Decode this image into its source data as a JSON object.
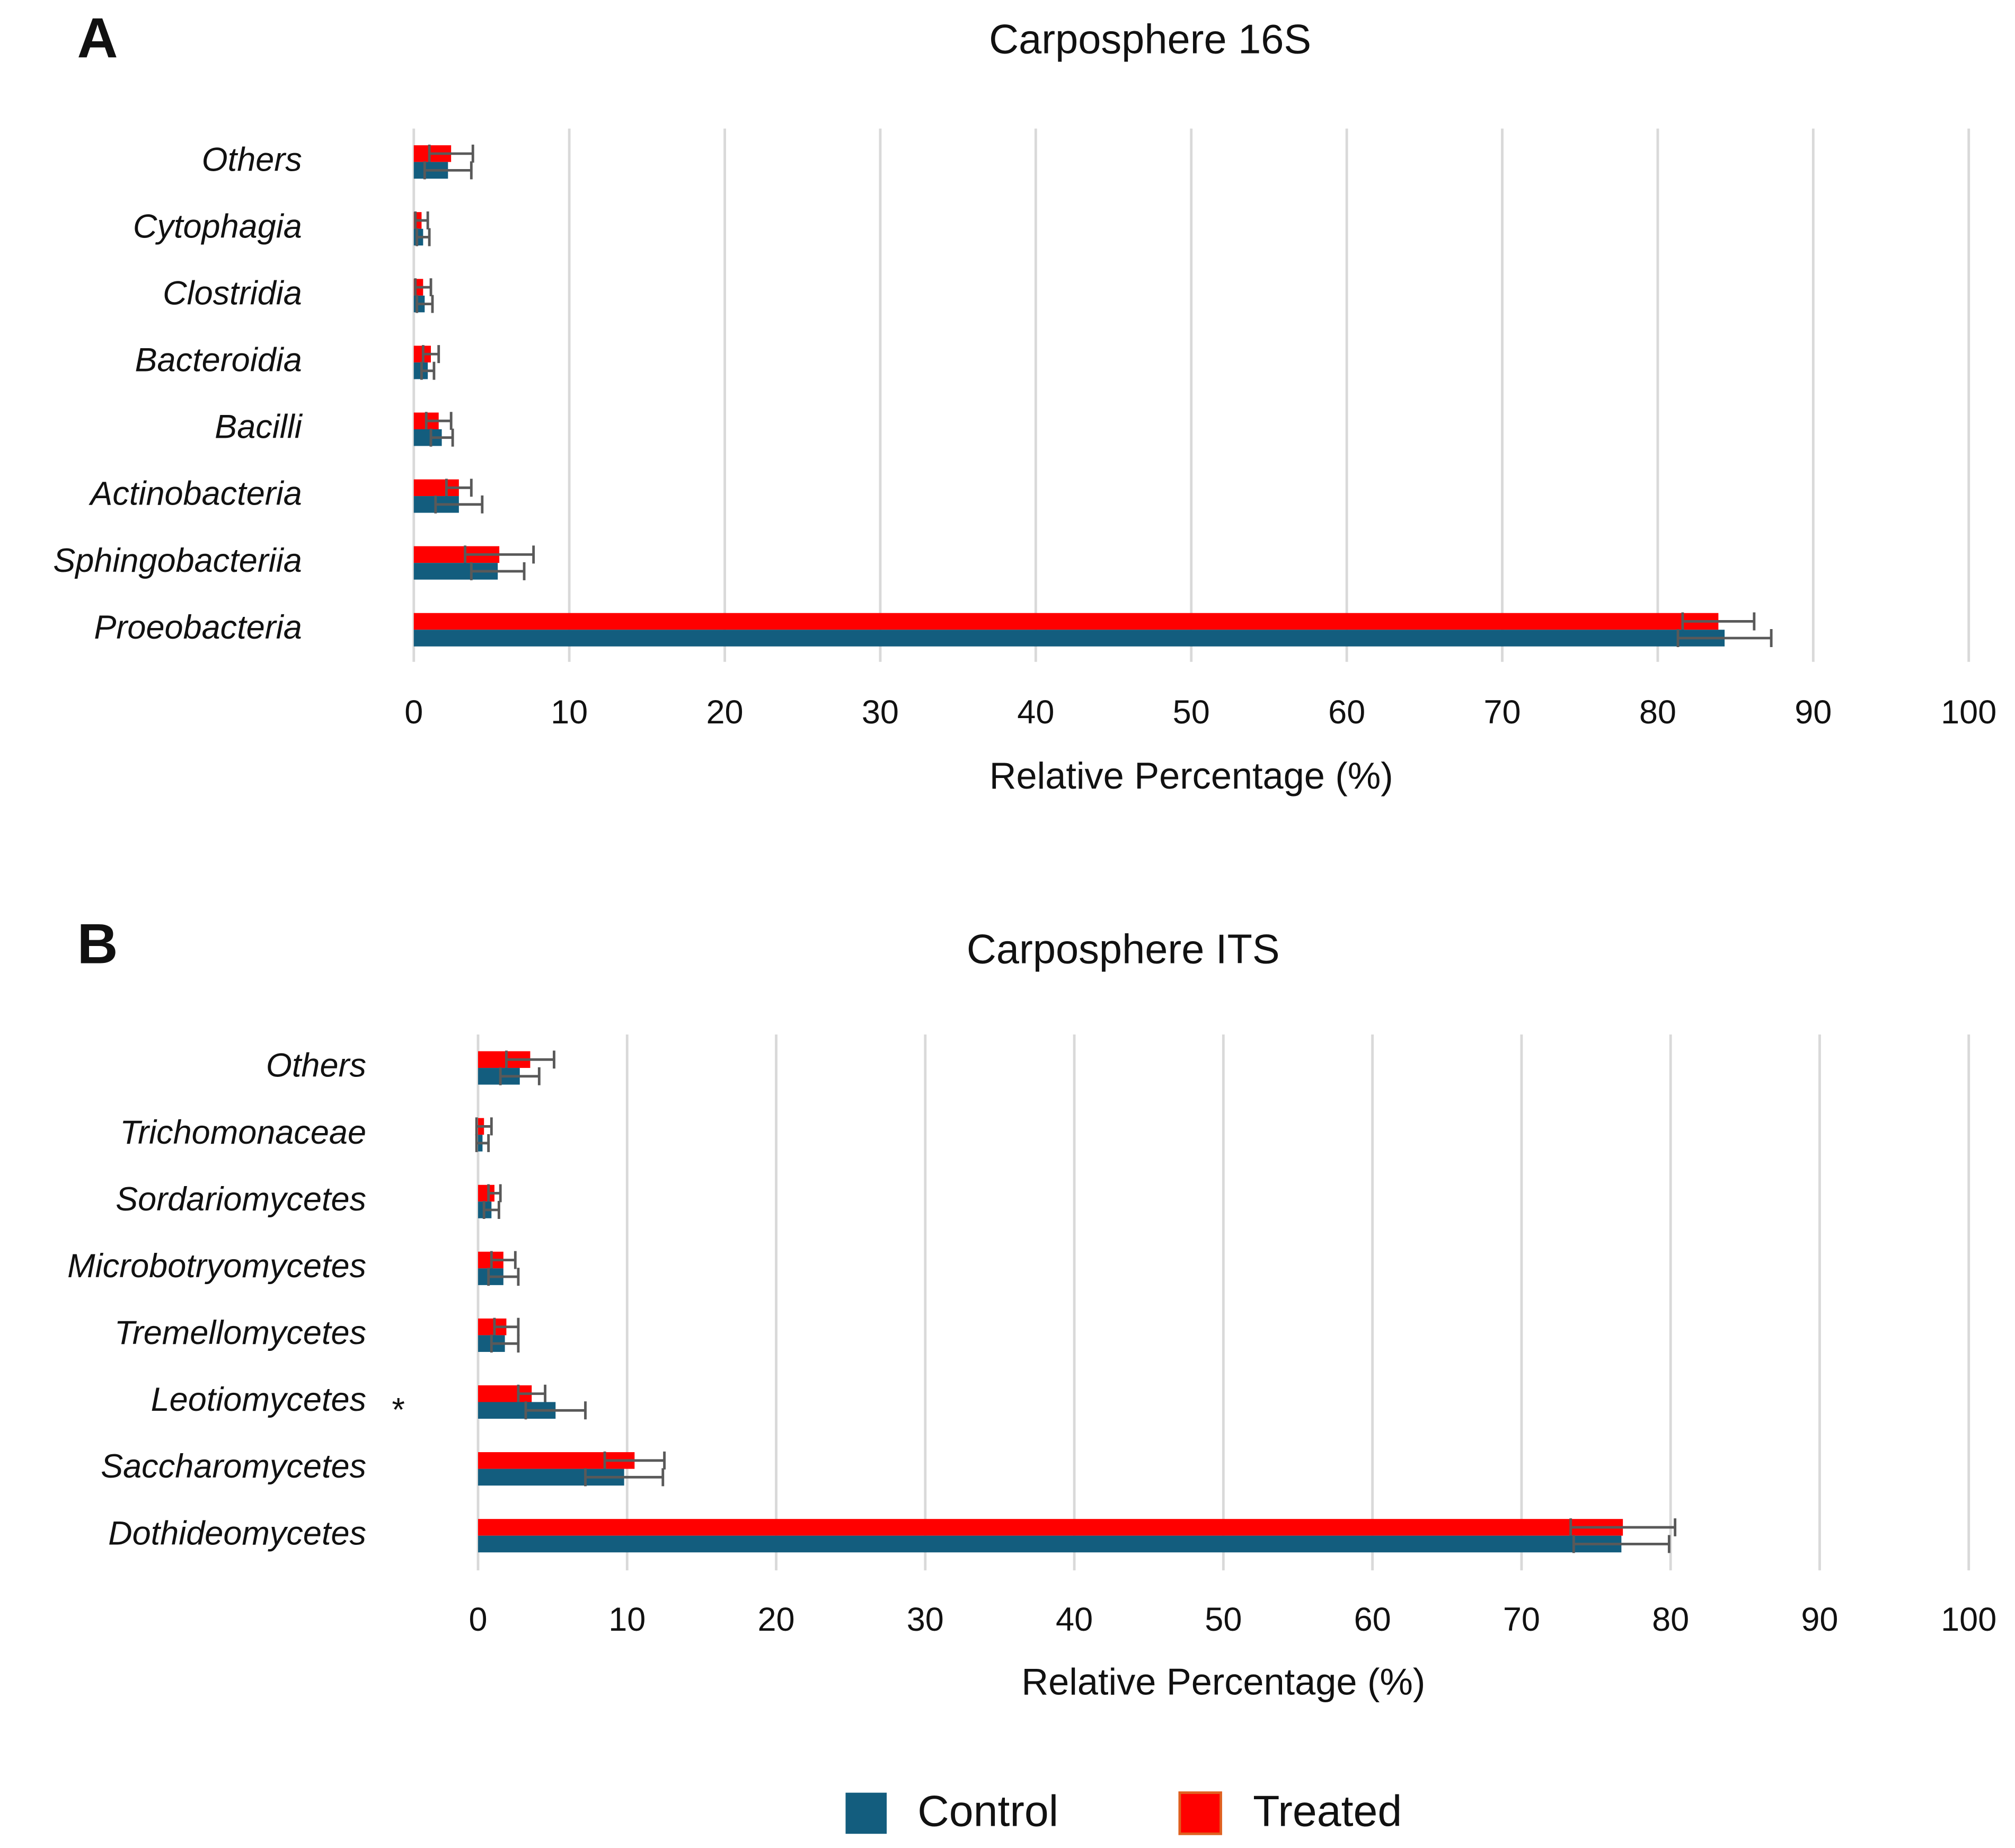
{
  "chart_data": [
    {
      "type": "hbar",
      "panel": "A",
      "title": "Carposphere 16S",
      "xlabel": "Relative Percentage (%)",
      "categories": [
        "Others",
        "Cytophagia",
        "Clostridia",
        "Bacteroidia",
        "Bacilli",
        "Actinobacteria",
        "Sphingobacteriia",
        "Proeobacteria"
      ],
      "series": [
        {
          "name": "Control",
          "color": "#135d7e",
          "values": [
            2.2,
            0.6,
            0.7,
            0.9,
            1.8,
            2.9,
            5.4,
            84.3
          ],
          "errors": [
            1.5,
            0.4,
            0.5,
            0.4,
            0.7,
            1.5,
            1.7,
            3.0
          ]
        },
        {
          "name": "Treated",
          "color": "#ff0000",
          "values": [
            2.4,
            0.5,
            0.6,
            1.1,
            1.6,
            2.9,
            5.5,
            83.9
          ],
          "errors": [
            1.4,
            0.4,
            0.5,
            0.5,
            0.8,
            0.8,
            2.2,
            2.3
          ]
        }
      ],
      "xlim": [
        0,
        100
      ],
      "xticks": [
        0,
        10,
        20,
        30,
        40,
        50,
        60,
        70,
        80,
        90,
        100
      ],
      "grid": true
    },
    {
      "type": "hbar",
      "panel": "B",
      "title": "Carposphere ITS",
      "xlabel": "Relative Percentage (%)",
      "annotation": "*",
      "categories": [
        "Others",
        "Trichomonaceae",
        "Sordariomycetes",
        "Microbotryomycetes",
        "Tremellomycetes",
        "Leotiomycetes",
        "Saccharomycetes",
        "Dothideomycetes"
      ],
      "series": [
        {
          "name": "Control",
          "color": "#135d7e",
          "values": [
            2.8,
            0.3,
            0.9,
            1.7,
            1.8,
            5.2,
            9.8,
            76.7
          ],
          "errors": [
            1.3,
            0.4,
            0.5,
            1.0,
            0.9,
            2.0,
            2.6,
            3.2
          ]
        },
        {
          "name": "Treated",
          "color": "#ff0000",
          "values": [
            3.5,
            0.4,
            1.1,
            1.7,
            1.9,
            3.6,
            10.5,
            76.8
          ],
          "errors": [
            1.6,
            0.5,
            0.4,
            0.8,
            0.8,
            0.9,
            2.0,
            3.5
          ]
        }
      ],
      "xlim": [
        0,
        100
      ],
      "xticks": [
        0,
        10,
        20,
        30,
        40,
        50,
        60,
        70,
        80,
        90,
        100
      ],
      "grid": true
    }
  ]
}
